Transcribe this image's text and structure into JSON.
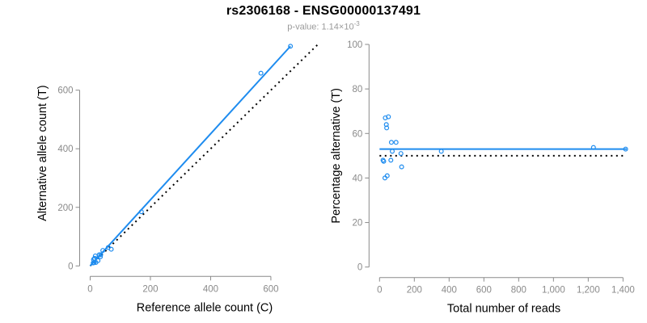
{
  "header": {
    "title": "rs2306168 - ENSG00000137491",
    "subtitle_prefix": "p-value: 1.14×10",
    "subtitle_exponent": "-3"
  },
  "colors": {
    "accent": "#1E8CEF",
    "axis": "#8a8a8a",
    "dotted_line": "#000000",
    "label": "#000000",
    "subtitle": "#9a9a9a",
    "background": "#ffffff"
  },
  "chart_data": [
    {
      "type": "scatter",
      "name": "allele-counts",
      "xlabel": "Reference allele count (C)",
      "ylabel": "Alternative allele count (T)",
      "xlim": [
        0,
        760
      ],
      "ylim": [
        0,
        770
      ],
      "xticks": [
        0,
        200,
        400,
        600
      ],
      "xtick_labels": [
        "0",
        "200",
        "400",
        "600"
      ],
      "yticks": [
        0,
        200,
        400,
        600
      ],
      "ytick_labels": [
        "0",
        "200",
        "400",
        "600"
      ],
      "grid": false,
      "legend": null,
      "points": [
        [
          665,
          750
        ],
        [
          567,
          658
        ],
        [
          170,
          185
        ],
        [
          70,
          57
        ],
        [
          60,
          63
        ],
        [
          42,
          53
        ],
        [
          35,
          38
        ],
        [
          34,
          31
        ],
        [
          30,
          38
        ],
        [
          26,
          18
        ],
        [
          19,
          12
        ],
        [
          17,
          34
        ],
        [
          15,
          26
        ],
        [
          14,
          25
        ],
        [
          13,
          11
        ],
        [
          11,
          22
        ],
        [
          10,
          10
        ]
      ],
      "lines": [
        {
          "name": "identity-line",
          "x": [
            0,
            760
          ],
          "y": [
            0,
            760
          ],
          "style": "dotted",
          "color": "dotted"
        },
        {
          "name": "fit-line",
          "x": [
            0,
            665
          ],
          "y": [
            0,
            750
          ],
          "style": "solid",
          "color": "accent"
        }
      ]
    },
    {
      "type": "scatter",
      "name": "percentage-vs-reads",
      "xlabel": "Total number of reads",
      "ylabel": "Percentage alternative (T)",
      "xlim": [
        0,
        1430
      ],
      "ylim": [
        0,
        100
      ],
      "xticks": [
        0,
        200,
        400,
        600,
        800,
        1000,
        1200,
        1400
      ],
      "xtick_labels": [
        "0",
        "200",
        "400",
        "600",
        "800",
        "1,000",
        "1,200",
        "1,400"
      ],
      "yticks": [
        0,
        20,
        40,
        60,
        80,
        100
      ],
      "ytick_labels": [
        "0",
        "20",
        "40",
        "60",
        "80",
        "100"
      ],
      "grid": false,
      "legend": null,
      "points": [
        [
          1415,
          53
        ],
        [
          1230,
          53.7
        ],
        [
          355,
          52
        ],
        [
          127,
          45
        ],
        [
          123,
          51
        ],
        [
          95,
          56
        ],
        [
          68,
          56
        ],
        [
          73,
          52
        ],
        [
          65,
          48
        ],
        [
          51,
          67.5
        ],
        [
          44,
          41
        ],
        [
          41,
          62.5
        ],
        [
          39,
          64
        ],
        [
          33,
          67
        ],
        [
          31,
          40
        ],
        [
          24,
          47.5
        ],
        [
          20,
          48
        ]
      ],
      "lines": [
        {
          "name": "expected-percentage-line",
          "x": [
            0,
            1400
          ],
          "y": [
            50,
            50
          ],
          "style": "dotted",
          "color": "dotted"
        },
        {
          "name": "fit-percentage-line",
          "x": [
            0,
            1422
          ],
          "y": [
            53,
            53
          ],
          "style": "solid",
          "color": "accent"
        }
      ]
    }
  ]
}
